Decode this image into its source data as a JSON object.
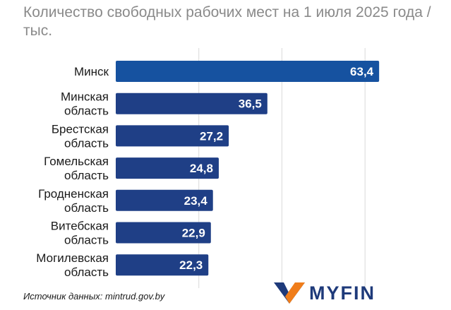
{
  "title": "Количество свободных рабочих мест на 1 июля 2025 года / тыс.",
  "source": "Источник данных: mintrud.gov.by",
  "brand": {
    "name": "MYFIN",
    "logo_colors": [
      "#1e3a7a",
      "#f07d1a"
    ]
  },
  "colors": {
    "bar_top": "#1652a0",
    "bar": "#1f3f86",
    "title": "#8a8a8a",
    "grid": "#d9d9d9"
  },
  "chart_data": {
    "type": "bar",
    "orientation": "horizontal",
    "title": "Количество свободных рабочих мест на 1 июля 2025 года / тыс.",
    "categories": [
      [
        "Минск"
      ],
      [
        "Минская",
        "область"
      ],
      [
        "Брестская",
        "область"
      ],
      [
        "Гомельская",
        "область"
      ],
      [
        "Гродненская",
        "область"
      ],
      [
        "Витебская",
        "область"
      ],
      [
        "Могилевская",
        "область"
      ]
    ],
    "values": [
      63.4,
      36.5,
      27.2,
      24.8,
      23.4,
      22.9,
      22.3
    ],
    "value_labels": [
      "63,4",
      "36,5",
      "27,2",
      "24,8",
      "23,4",
      "22,9",
      "22,3"
    ],
    "xlim": [
      0,
      70
    ],
    "grid": true,
    "legend": "none",
    "xlabel": "",
    "ylabel": ""
  }
}
